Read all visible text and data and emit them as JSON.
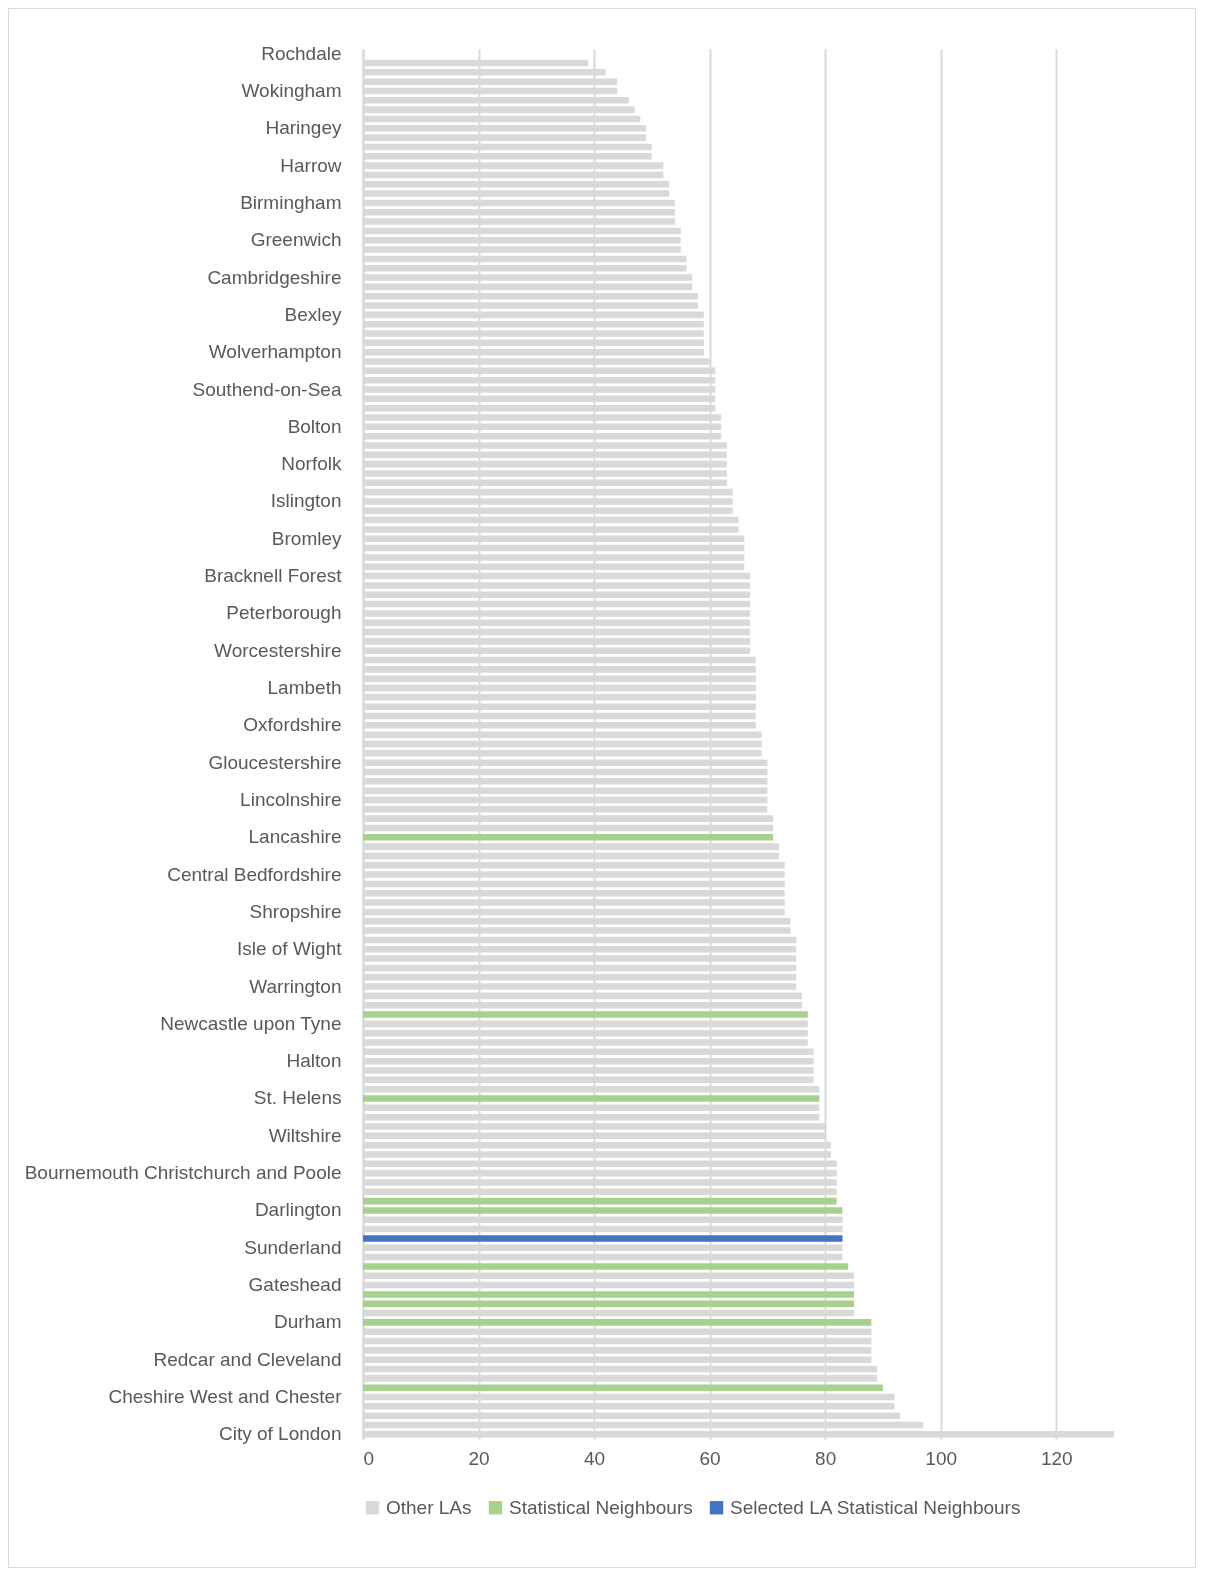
{
  "chart_data": {
    "type": "bar",
    "orientation": "horizontal",
    "categories": [
      "Rochdale",
      null,
      null,
      null,
      "Wokingham",
      null,
      null,
      null,
      "Haringey",
      null,
      null,
      null,
      "Harrow",
      null,
      null,
      null,
      "Birmingham",
      null,
      null,
      null,
      "Greenwich",
      null,
      null,
      null,
      "Cambridgeshire",
      null,
      null,
      null,
      "Bexley",
      null,
      null,
      null,
      "Wolverhampton",
      null,
      null,
      null,
      "Southend-on-Sea",
      null,
      null,
      null,
      "Bolton",
      null,
      null,
      null,
      "Norfolk",
      null,
      null,
      null,
      "Islington",
      null,
      null,
      null,
      "Bromley",
      null,
      null,
      null,
      "Bracknell Forest",
      null,
      null,
      null,
      "Peterborough",
      null,
      null,
      null,
      "Worcestershire",
      null,
      null,
      null,
      "Lambeth",
      null,
      null,
      null,
      "Oxfordshire",
      null,
      null,
      null,
      "Gloucestershire",
      null,
      null,
      null,
      "Lincolnshire",
      null,
      null,
      null,
      "Lancashire",
      null,
      null,
      null,
      "Central Bedfordshire",
      null,
      null,
      null,
      "Shropshire",
      null,
      null,
      null,
      "Isle of Wight",
      null,
      null,
      null,
      "Warrington",
      null,
      null,
      null,
      "Newcastle upon Tyne",
      null,
      null,
      null,
      "Halton",
      null,
      null,
      null,
      "St. Helens",
      null,
      null,
      null,
      "Wiltshire",
      null,
      null,
      null,
      "Bournemouth Christchurch and Poole",
      null,
      null,
      null,
      "Darlington",
      null,
      null,
      null,
      "Sunderland",
      null,
      null,
      null,
      "Gateshead",
      null,
      null,
      null,
      "Durham",
      null,
      null,
      null,
      "Redcar and Cleveland",
      null,
      null,
      null,
      "Cheshire West and Chester",
      null,
      null,
      null,
      "City of London"
    ],
    "series": [
      {
        "name": "Other LAs",
        "color": "#d9d9d9",
        "values": [
          null,
          39,
          42,
          44,
          44,
          46,
          47,
          48,
          49,
          49,
          50,
          50,
          52,
          52,
          53,
          53,
          54,
          54,
          54,
          55,
          55,
          55,
          56,
          56,
          57,
          57,
          58,
          58,
          59,
          59,
          59,
          59,
          59,
          60,
          61,
          61,
          61,
          61,
          61,
          62,
          62,
          62,
          63,
          63,
          63,
          63,
          63,
          64,
          64,
          64,
          65,
          65,
          66,
          66,
          66,
          66,
          67,
          67,
          67,
          67,
          67,
          67,
          67,
          67,
          67,
          68,
          68,
          68,
          68,
          68,
          68,
          68,
          68,
          69,
          69,
          69,
          70,
          70,
          70,
          70,
          70,
          70,
          71,
          71,
          null,
          72,
          72,
          73,
          73,
          73,
          73,
          73,
          73,
          74,
          74,
          75,
          75,
          75,
          75,
          75,
          75,
          76,
          76,
          null,
          77,
          77,
          77,
          78,
          78,
          78,
          78,
          79,
          null,
          79,
          79,
          80,
          80,
          81,
          81,
          82,
          82,
          82,
          82,
          null,
          null,
          83,
          83,
          null,
          83,
          83,
          null,
          85,
          85,
          null,
          null,
          85,
          null,
          88,
          88,
          88,
          88,
          89,
          89,
          null,
          92,
          92,
          93,
          97,
          130
        ]
      },
      {
        "name": "Statistical Neighbours",
        "color": "#a9d18e",
        "values": [
          null,
          null,
          null,
          null,
          null,
          null,
          null,
          null,
          null,
          null,
          null,
          null,
          null,
          null,
          null,
          null,
          null,
          null,
          null,
          null,
          null,
          null,
          null,
          null,
          null,
          null,
          null,
          null,
          null,
          null,
          null,
          null,
          null,
          null,
          null,
          null,
          null,
          null,
          null,
          null,
          null,
          null,
          null,
          null,
          null,
          null,
          null,
          null,
          null,
          null,
          null,
          null,
          null,
          null,
          null,
          null,
          null,
          null,
          null,
          null,
          null,
          null,
          null,
          null,
          null,
          null,
          null,
          null,
          null,
          null,
          null,
          null,
          null,
          null,
          null,
          null,
          null,
          null,
          null,
          null,
          null,
          null,
          null,
          null,
          71,
          null,
          null,
          null,
          null,
          null,
          null,
          null,
          null,
          null,
          null,
          null,
          null,
          null,
          null,
          null,
          null,
          null,
          null,
          77,
          null,
          null,
          null,
          null,
          null,
          null,
          null,
          null,
          79,
          null,
          null,
          null,
          null,
          null,
          null,
          null,
          null,
          null,
          null,
          82,
          83,
          null,
          null,
          null,
          null,
          null,
          84,
          null,
          null,
          85,
          85,
          null,
          88,
          null,
          null,
          null,
          null,
          null,
          null,
          90,
          null,
          null,
          null,
          null,
          null
        ]
      },
      {
        "name": "Selected LA Statistical Neighbours",
        "color": "#4472c4",
        "values": [
          null,
          null,
          null,
          null,
          null,
          null,
          null,
          null,
          null,
          null,
          null,
          null,
          null,
          null,
          null,
          null,
          null,
          null,
          null,
          null,
          null,
          null,
          null,
          null,
          null,
          null,
          null,
          null,
          null,
          null,
          null,
          null,
          null,
          null,
          null,
          null,
          null,
          null,
          null,
          null,
          null,
          null,
          null,
          null,
          null,
          null,
          null,
          null,
          null,
          null,
          null,
          null,
          null,
          null,
          null,
          null,
          null,
          null,
          null,
          null,
          null,
          null,
          null,
          null,
          null,
          null,
          null,
          null,
          null,
          null,
          null,
          null,
          null,
          null,
          null,
          null,
          null,
          null,
          null,
          null,
          null,
          null,
          null,
          null,
          null,
          null,
          null,
          null,
          null,
          null,
          null,
          null,
          null,
          null,
          null,
          null,
          null,
          null,
          null,
          null,
          null,
          null,
          null,
          null,
          null,
          null,
          null,
          null,
          null,
          null,
          null,
          null,
          null,
          null,
          null,
          null,
          null,
          null,
          null,
          null,
          null,
          null,
          null,
          null,
          null,
          null,
          null,
          83,
          null,
          null,
          null,
          null,
          null,
          null,
          null,
          null,
          null,
          null,
          null,
          null,
          null,
          null,
          null,
          null,
          null,
          null,
          null,
          null,
          null
        ]
      }
    ],
    "xlim": [
      0,
      130
    ],
    "xticks": [
      0,
      20,
      40,
      60,
      80,
      100,
      120
    ],
    "grid": "x",
    "legend": "bottom"
  }
}
